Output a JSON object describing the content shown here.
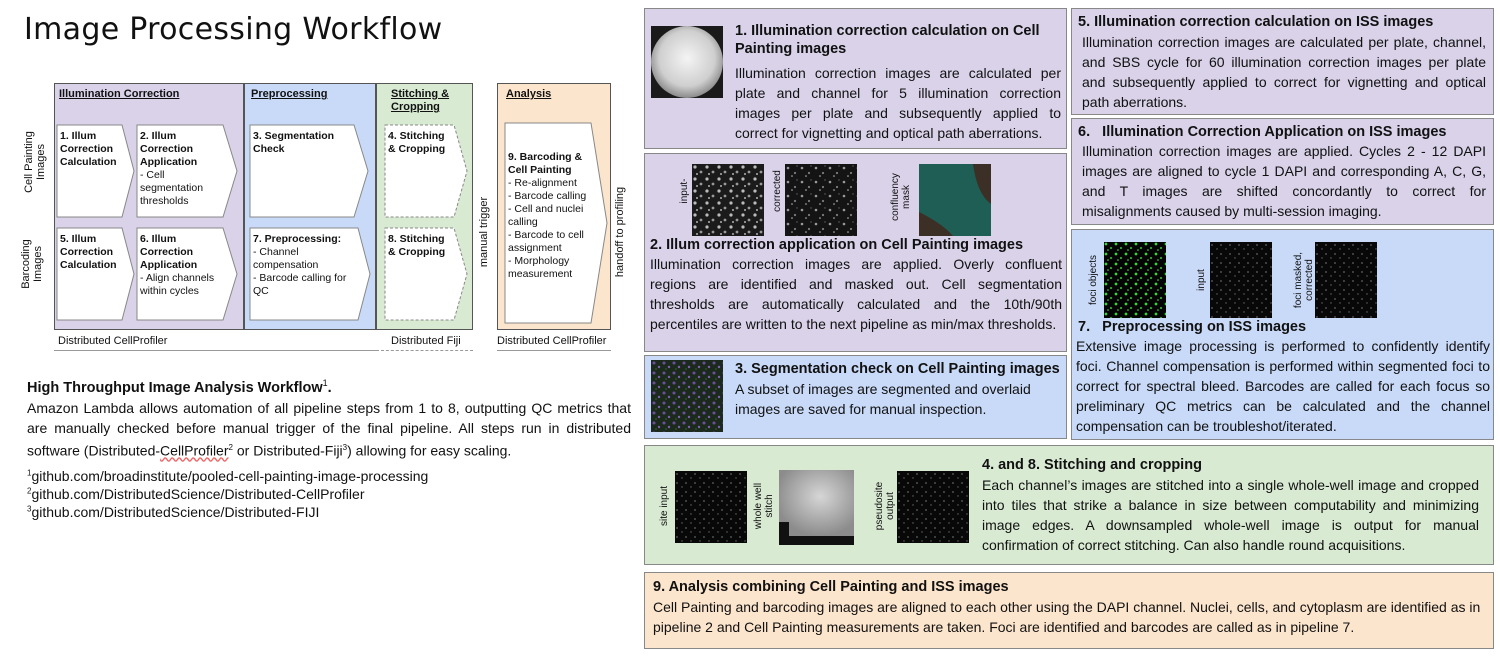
{
  "title": "Image Processing Workflow",
  "diagram": {
    "sections": {
      "illum": "Illumination Correction",
      "pre": "Preprocessing",
      "stitch": "Stitching &\nCropping",
      "analysis": "Analysis"
    },
    "row_labels": {
      "cp": "Cell Painting\nImages",
      "bc": "Barcoding\nImages"
    },
    "steps": {
      "s1": {
        "title": "1. Illum\nCorrection\nCalculation",
        "detail": ""
      },
      "s2": {
        "title": "2. Illum\nCorrection\nApplication",
        "detail": "- Cell\nsegmentation\nthresholds"
      },
      "s3": {
        "title": "3. Segmentation\nCheck",
        "detail": ""
      },
      "s4": {
        "title": "4. Stitching\n& Cropping",
        "detail": ""
      },
      "s5": {
        "title": "5. Illum\nCorrection\nCalculation",
        "detail": ""
      },
      "s6": {
        "title": "6. Illum Correction\nApplication",
        "detail": "- Align channels\nwithin cycles"
      },
      "s7": {
        "title": "7. Preprocessing:",
        "detail": "- Channel\ncompensation\n- Barcode calling for QC"
      },
      "s8": {
        "title": "8. Stitching\n& Cropping",
        "detail": ""
      },
      "s9": {
        "title": "9. Barcoding &\nCell Painting",
        "detail": "- Re-alignment\n- Barcode calling\n- Cell and nuclei\ncalling\n- Barcode to cell\nassignment\n- Morphology\nmeasurement"
      }
    },
    "manual_trigger": "manual trigger",
    "handoff": "handoff to profiling",
    "footers": {
      "cellprofiler": "Distributed CellProfiler",
      "fiji": "Distributed Fiji",
      "cellprofiler2": "Distributed CellProfiler"
    }
  },
  "workflow": {
    "title": "High Throughput Image Analysis Workflow",
    "title_sup": "1",
    "title_end": ".",
    "body_a": "Amazon Lambda allows automation of all pipeline steps from 1 to 8, outputting QC metrics that are manually checked before manual trigger of the final pipeline. All steps run in distributed software (Distributed-",
    "body_cp": "CellProfiler",
    "body_sup2": "2",
    "body_b": " or Distributed-Fiji",
    "body_sup3": "3",
    "body_c": ") allowing for easy scaling.",
    "links": [
      {
        "sup": "1",
        "text": "github.com/broadinstitute/pooled-cell-painting-image-processing"
      },
      {
        "sup": "2",
        "text": "github.com/DistributedScience/Distributed-CellProfiler"
      },
      {
        "sup": "3",
        "text": "github.com/DistributedScience/Distributed-FIJI"
      }
    ]
  },
  "panels": {
    "p1": {
      "title": "1. Illumination correction calculation on Cell Painting images",
      "body": "Illumination correction images are calculated per plate and channel for 5 illumination correction images per plate and subsequently applied to correct for vignetting and optical path aberrations."
    },
    "p2": {
      "title": "2. Illum correction application on Cell Painting images",
      "body": "Illumination correction images are applied. Overly confluent regions are identified and masked out. Cell segmentation thresholds are automatically calculated and the 10th/90th percentiles are written to the next pipeline as min/max thresholds.",
      "labels": [
        "input-",
        "corrected",
        "confluency\nmask"
      ]
    },
    "p3": {
      "title": "3. Segmentation check on Cell Painting images",
      "body": "A subset of images are segmented and overlaid images are saved for manual inspection."
    },
    "p5": {
      "title": "5. Illumination correction calculation on ISS images",
      "body": "Illumination correction images are calculated per plate, channel, and SBS cycle for 60 illumination correction images per plate and subsequently applied to correct for vignetting and optical path aberrations."
    },
    "p6": {
      "title": "6.   Illumination Correction Application on ISS images",
      "body": "Illumination correction images are applied. Cycles 2 - 12 DAPI images are aligned to cycle 1 DAPI and corresponding A, C, G, and T images are shifted concordantly to correct for misalignments caused by multi-session imaging."
    },
    "p7": {
      "title": "7.   Preprocessing on ISS images",
      "body": "Extensive image processing is performed to confidently identify foci. Channel compensation is performed within segmented foci to correct for spectral bleed. Barcodes are called for each focus so preliminary QC metrics can be calculated and the channel compensation can be troubleshot/iterated.",
      "labels": [
        "foci objects",
        "input",
        "foci masked,\ncorrected"
      ]
    },
    "p48": {
      "title": "4. and 8. Stitching and cropping",
      "body": "Each channel’s images are stitched into a single whole-well image and cropped into tiles that strike a balance in size between computability and minimizing image edges. A downsampled whole-well image is output for manual confirmation of correct stitching. Can also handle round acquisitions.",
      "labels": [
        "site input",
        "whole well\nstitch",
        "pseudosite\noutput"
      ]
    },
    "p9": {
      "title": "9. Analysis combining Cell Painting and ISS images",
      "body": "Cell Painting and barcoding images are aligned to each other using the DAPI channel. Nuclei, cells, and cytoplasm are identified as in pipeline 2 and Cell Painting measurements are taken. Foci are identified and barcodes are called as in pipeline 7."
    }
  },
  "colors": {
    "illum": "#d9d2e9",
    "pre": "#c9daf8",
    "stitch": "#d9ead3",
    "analysis": "#fce5cd"
  }
}
